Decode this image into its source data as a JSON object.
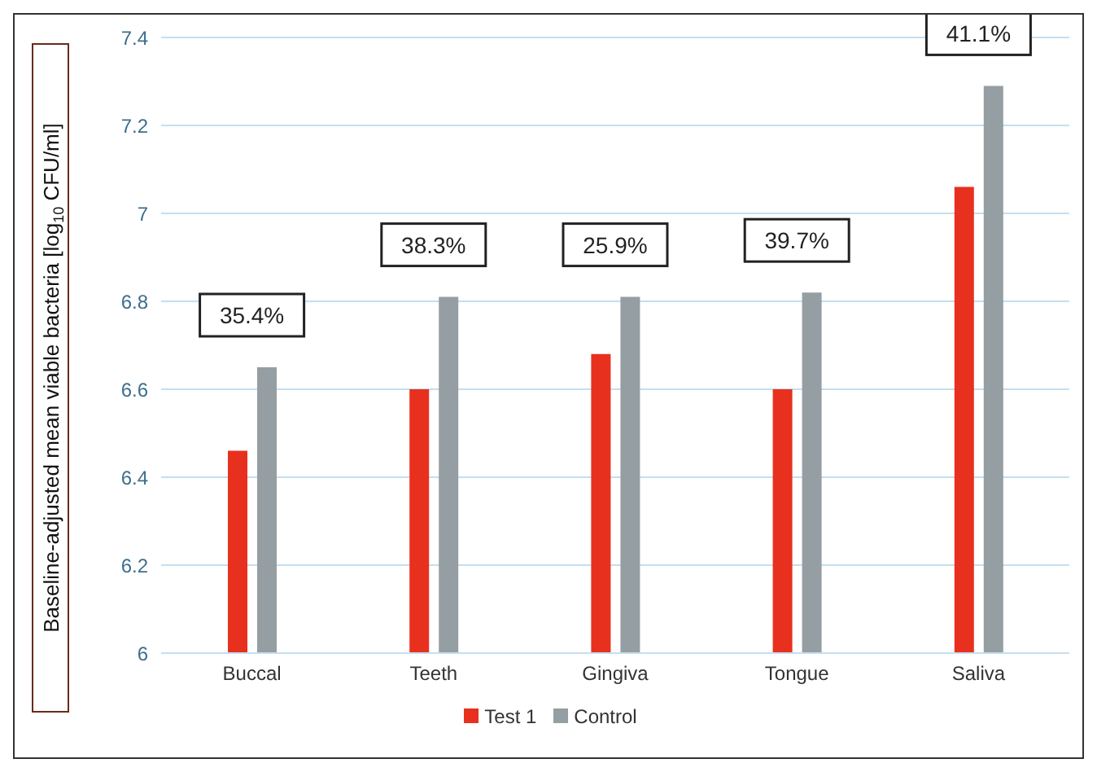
{
  "chart_data": {
    "type": "bar",
    "ylabel": "Baseline-adjusted mean viable bacteria [log$_{10}$ CFU/ml]",
    "categories": [
      "Buccal",
      "Teeth",
      "Gingiva",
      "Tongue",
      "Saliva"
    ],
    "series": [
      {
        "name": "Test 1",
        "color": "#e8301e",
        "values": [
          6.46,
          6.6,
          6.68,
          6.6,
          7.06
        ]
      },
      {
        "name": "Control",
        "color": "#959ea3",
        "values": [
          6.65,
          6.81,
          6.81,
          6.82,
          7.29
        ]
      }
    ],
    "ylim": [
      6,
      7.4
    ],
    "yticks": [
      6,
      6.2,
      6.4,
      6.6,
      6.8,
      7,
      7.2,
      7.4
    ],
    "grid": "y",
    "legend": "bottom",
    "annotations": [
      "35.4%",
      "38.3%",
      "25.9%",
      "39.7%",
      "41.1%"
    ]
  }
}
